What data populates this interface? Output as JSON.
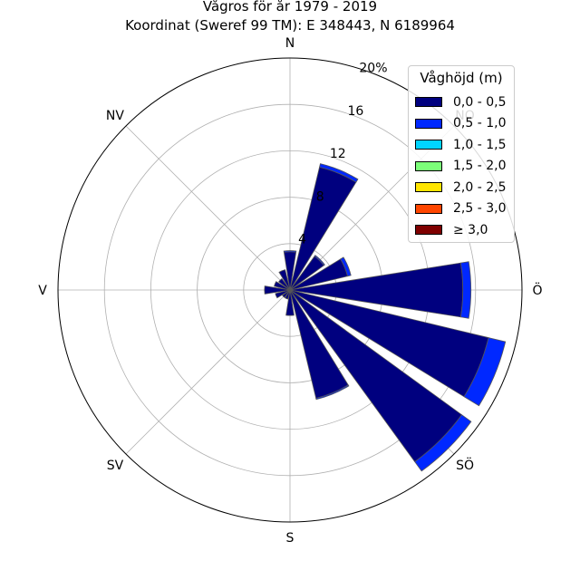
{
  "chart_data": {
    "type": "polar-bar",
    "title": "Vågros för år 1979 - 2019",
    "subtitle": "Koordinat (Sweref 99 TM): E 348443, N 6189964",
    "rmax": 20,
    "radial_ticks": [
      "4",
      "8",
      "12",
      "16",
      "20%"
    ],
    "radial_tick_values": [
      4,
      8,
      12,
      16,
      20
    ],
    "directions": [
      "N",
      "NO",
      "Ö",
      "SÖ",
      "S",
      "SV",
      "V",
      "NV"
    ],
    "legend_title": "Våghöjd (m)",
    "bins": [
      {
        "label": "0,0 - 0,5",
        "color": "#00007f"
      },
      {
        "label": "0,5 - 1,0",
        "color": "#0028ff"
      },
      {
        "label": "1,0 - 1,5",
        "color": "#00d4ff"
      },
      {
        "label": "1,5 - 2,0",
        "color": "#7cff79"
      },
      {
        "label": "2,0 - 2,5",
        "color": "#ffe500"
      },
      {
        "label": "2,5 - 3,0",
        "color": "#ff4600"
      },
      {
        "label": "≥ 3,0",
        "color": "#7f0000"
      }
    ],
    "sectors": [
      {
        "dir_deg": 0,
        "values": [
          3.3,
          0.1
        ]
      },
      {
        "dir_deg": 22.5,
        "values": [
          10.9,
          0.3
        ]
      },
      {
        "dir_deg": 45,
        "values": [
          3.6,
          0.1
        ]
      },
      {
        "dir_deg": 67.5,
        "values": [
          5.1,
          0.3
        ]
      },
      {
        "dir_deg": 90,
        "values": [
          14.9,
          0.7
        ]
      },
      {
        "dir_deg": 112.5,
        "values": [
          17.6,
          1.5
        ]
      },
      {
        "dir_deg": 135,
        "values": [
          18.3,
          1.0
        ]
      },
      {
        "dir_deg": 157.5,
        "values": [
          9.6,
          0.1
        ]
      },
      {
        "dir_deg": 180,
        "values": [
          2.2
        ]
      },
      {
        "dir_deg": 202.5,
        "values": [
          0.8
        ]
      },
      {
        "dir_deg": 225,
        "values": [
          0.8
        ]
      },
      {
        "dir_deg": 247.5,
        "values": [
          1.3
        ]
      },
      {
        "dir_deg": 270,
        "values": [
          2.2
        ]
      },
      {
        "dir_deg": 292.5,
        "values": [
          1.4
        ]
      },
      {
        "dir_deg": 315,
        "values": [
          1.2
        ]
      },
      {
        "dir_deg": 337.5,
        "values": [
          1.8
        ]
      }
    ]
  }
}
